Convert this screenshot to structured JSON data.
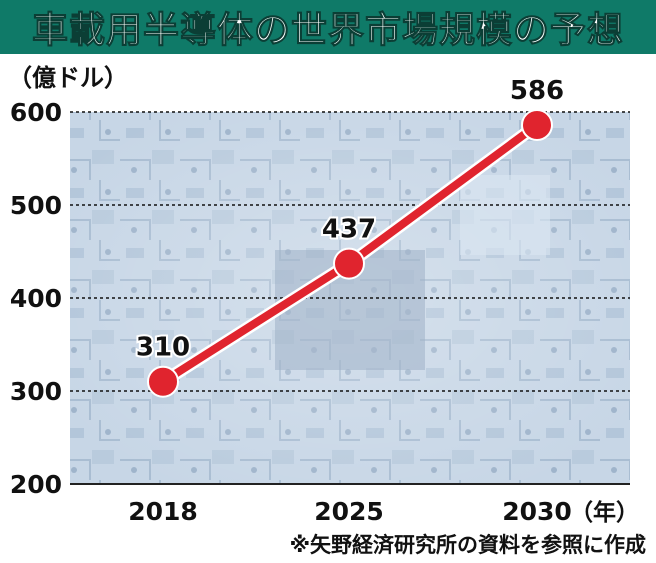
{
  "header": {
    "title": "車載用半導体の世界市場規模の予想"
  },
  "chart_data": {
    "type": "line",
    "unit_label": "（億ドル）",
    "x_unit": "（年）",
    "categories": [
      "2018",
      "2025",
      "2030"
    ],
    "values": [
      310,
      437,
      586
    ],
    "data_labels": [
      "310",
      "437",
      "586"
    ],
    "y_ticks": [
      "200",
      "300",
      "400",
      "500",
      "600"
    ],
    "ylim": [
      200,
      600
    ],
    "grid": true,
    "line_color": "#e0242e"
  },
  "footer": {
    "source": "※矢野経済研究所の資料を参照に作成"
  }
}
